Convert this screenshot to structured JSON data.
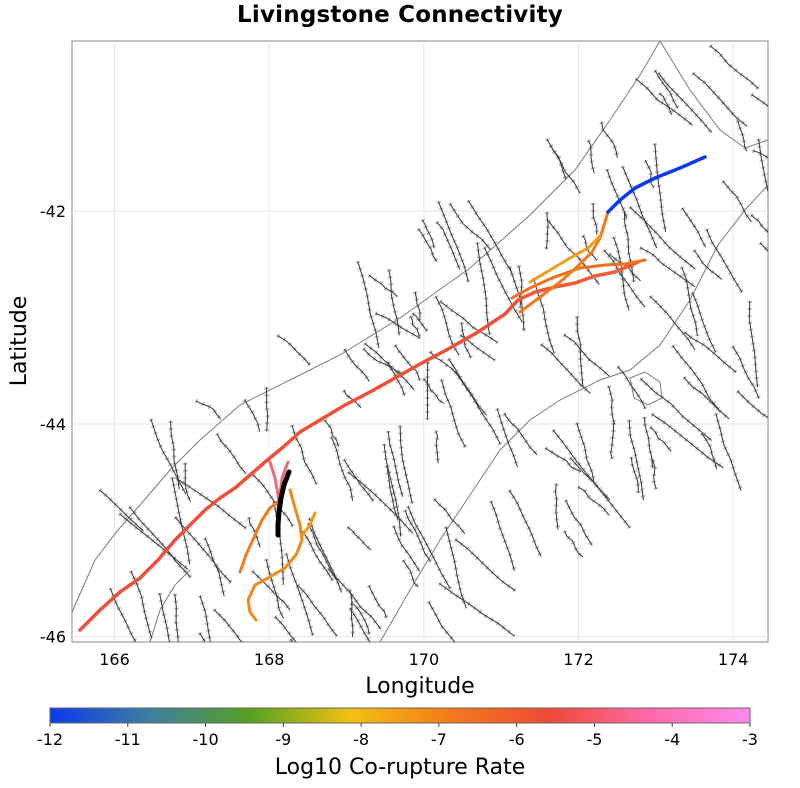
{
  "title": "Livingstone Connectivity",
  "map": {
    "xlabel": "Longitude",
    "ylabel": "Latitude",
    "xlim": [
      165.45,
      174.45
    ],
    "ylim": [
      -46.05,
      -40.4
    ],
    "xticks": [
      "166",
      "168",
      "170",
      "172",
      "174"
    ],
    "yticks": [
      "-42",
      "-44",
      "-46"
    ]
  },
  "colorbar": {
    "label": "Log10 Co-rupture Rate",
    "ticks": [
      "-12",
      "-11",
      "-10",
      "-9",
      "-8",
      "-7",
      "-6",
      "-5",
      "-4",
      "-3"
    ],
    "min": -12,
    "max": -3,
    "colors": [
      "#0a3aee",
      "#3f7fa0",
      "#55a020",
      "#f2c012",
      "#f47a1a",
      "#ee4a38",
      "#ff6aa8",
      "#ff88f0"
    ]
  },
  "colors": {
    "fault_dark": "#333333",
    "fault_light": "#9a9a9a",
    "source_fault": "#000000"
  }
}
